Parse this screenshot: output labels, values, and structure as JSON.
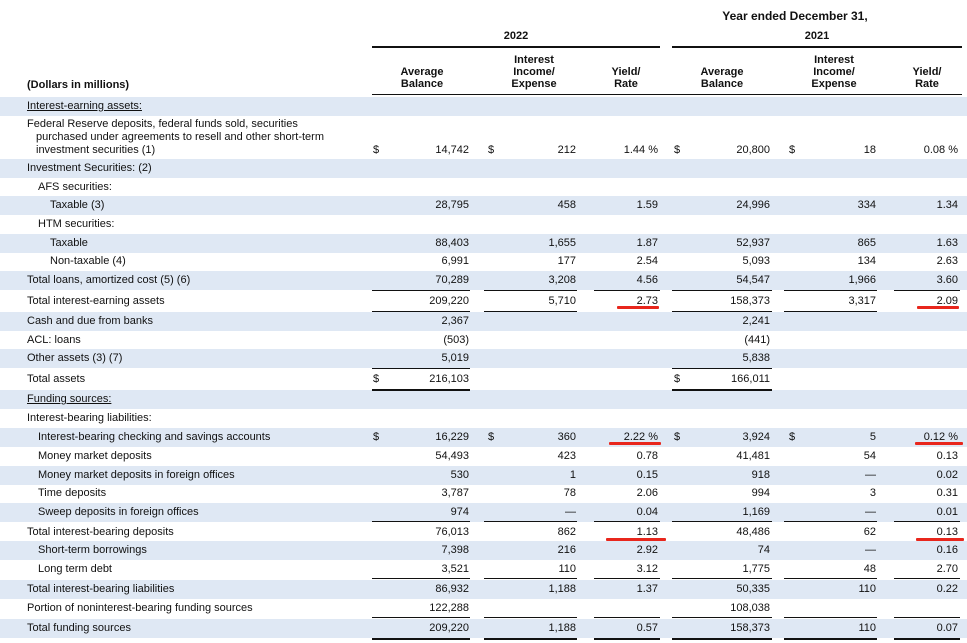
{
  "header": {
    "period_title": "Year ended December 31,",
    "year_2022": "2022",
    "year_2021": "2021",
    "units_label": "(Dollars in millions)",
    "col_avg_balance": [
      "Average",
      "Balance"
    ],
    "col_interest": [
      "Interest",
      "Income/",
      "Expense"
    ],
    "col_yield": [
      "Yield/",
      "Rate"
    ]
  },
  "rows": [
    {
      "label": "Interest-earning assets:",
      "underline": true
    },
    {
      "label": "Federal Reserve deposits, federal funds sold, securities",
      "extra": [
        "purchased under agreements to resell and other short-term",
        "investment securities (1)"
      ],
      "values": [
        "14,742",
        "212",
        "1.44 %",
        "20,800",
        "18",
        "0.08 %"
      ],
      "dollars": true
    },
    {
      "label": "Investment Securities: (2)"
    },
    {
      "label": "AFS securities:",
      "indent": 1
    },
    {
      "label": "Taxable (3)",
      "indent": 2,
      "values": [
        "28,795",
        "458",
        "1.59",
        "24,996",
        "334",
        "1.34"
      ]
    },
    {
      "label": "HTM securities:",
      "indent": 1
    },
    {
      "label": "Taxable",
      "indent": 2,
      "values": [
        "88,403",
        "1,655",
        "1.87",
        "52,937",
        "865",
        "1.63"
      ]
    },
    {
      "label": "Non-taxable (4)",
      "indent": 2,
      "values": [
        "6,991",
        "177",
        "2.54",
        "5,093",
        "134",
        "2.63"
      ]
    },
    {
      "label": "Total loans, amortized cost (5) (6)",
      "values": [
        "70,289",
        "3,208",
        "4.56",
        "54,547",
        "1,966",
        "3.60"
      ]
    },
    {
      "label": "Total interest-earning assets",
      "values": [
        "209,220",
        "5,710",
        "2.73",
        "158,373",
        "3,317",
        "2.09"
      ]
    },
    {
      "label": "Cash and due from banks",
      "values": [
        "2,367",
        "",
        "",
        "2,241",
        "",
        ""
      ]
    },
    {
      "label": "ACL: loans",
      "values": [
        "(503)",
        "",
        "",
        "(441)",
        "",
        ""
      ]
    },
    {
      "label": "Other assets (3) (7)",
      "values": [
        "5,019",
        "",
        "",
        "5,838",
        "",
        ""
      ]
    },
    {
      "label": "Total assets",
      "values": [
        "216,103",
        "",
        "",
        "166,011",
        "",
        ""
      ],
      "dollars_balance": true
    },
    {
      "label": "Funding sources:",
      "underline": true
    },
    {
      "label": "Interest-bearing liabilities:"
    },
    {
      "label": "Interest-bearing checking and savings accounts",
      "indent": 1,
      "values": [
        "16,229",
        "360",
        "2.22 %",
        "3,924",
        "5",
        "0.12 %"
      ],
      "dollars": true
    },
    {
      "label": "Money market deposits",
      "indent": 1,
      "values": [
        "54,493",
        "423",
        "0.78",
        "41,481",
        "54",
        "0.13"
      ]
    },
    {
      "label": "Money market deposits in foreign offices",
      "indent": 1,
      "values": [
        "530",
        "1",
        "0.15",
        "918",
        "—",
        "0.02"
      ]
    },
    {
      "label": "Time deposits",
      "indent": 1,
      "values": [
        "3,787",
        "78",
        "2.06",
        "994",
        "3",
        "0.31"
      ]
    },
    {
      "label": "Sweep deposits in foreign offices",
      "indent": 1,
      "values": [
        "974",
        "—",
        "0.04",
        "1,169",
        "—",
        "0.01"
      ]
    },
    {
      "label": "Total interest-bearing deposits",
      "values": [
        "76,013",
        "862",
        "1.13",
        "48,486",
        "62",
        "0.13"
      ]
    },
    {
      "label": "Short-term borrowings",
      "indent": 1,
      "values": [
        "7,398",
        "216",
        "2.92",
        "74",
        "—",
        "0.16"
      ]
    },
    {
      "label": "Long term debt",
      "indent": 1,
      "values": [
        "3,521",
        "110",
        "3.12",
        "1,775",
        "48",
        "2.70"
      ]
    },
    {
      "label": "Total interest-bearing liabilities",
      "values": [
        "86,932",
        "1,188",
        "1.37",
        "50,335",
        "110",
        "0.22"
      ]
    },
    {
      "label": "Portion of noninterest-bearing funding sources",
      "values": [
        "122,288",
        "",
        "",
        "108,038",
        "",
        ""
      ]
    },
    {
      "label": "Total funding sources",
      "values": [
        "209,220",
        "1,188",
        "0.57",
        "158,373",
        "110",
        "0.07"
      ]
    }
  ],
  "dollar_sign": "$",
  "colors": {
    "shade": "#dfe8f4",
    "annotation": "#e8261c",
    "text": "#111111"
  }
}
